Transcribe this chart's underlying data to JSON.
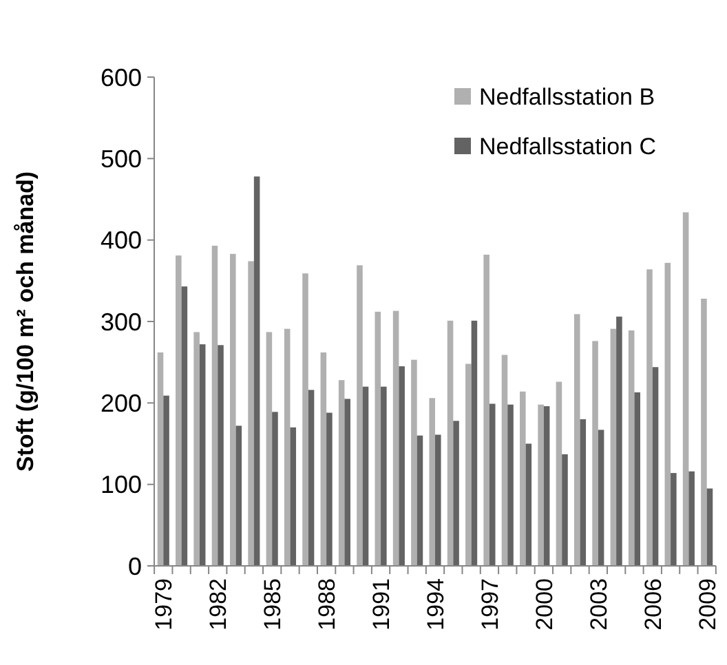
{
  "chart_data": {
    "type": "bar",
    "ylabel": "Stoft (g/100 m² och månad)",
    "categories": [
      "1979",
      null,
      null,
      "1982",
      null,
      null,
      "1985",
      null,
      null,
      "1988",
      null,
      null,
      "1991",
      null,
      null,
      "1994",
      null,
      null,
      "1997",
      null,
      null,
      "2000",
      null,
      null,
      "2003",
      null,
      null,
      "2006",
      null,
      null,
      "2009"
    ],
    "series": [
      {
        "name": "Nedfallsstation B",
        "color": "#b0b0b0",
        "values": [
          262,
          381,
          287,
          393,
          383,
          374,
          287,
          291,
          359,
          262,
          228,
          369,
          312,
          313,
          253,
          206,
          301,
          248,
          382,
          259,
          214,
          198,
          226,
          309,
          276,
          291,
          289,
          364,
          372,
          434,
          328
        ]
      },
      {
        "name": "Nedfallsstation C",
        "color": "#636363",
        "values": [
          209,
          343,
          272,
          271,
          172,
          478,
          189,
          170,
          216,
          188,
          205,
          220,
          220,
          245,
          160,
          161,
          178,
          301,
          199,
          198,
          150,
          196,
          137,
          180,
          167,
          306,
          213,
          244,
          114,
          116,
          95
        ]
      }
    ],
    "ylim": [
      0,
      600
    ],
    "yticks": [
      0,
      100,
      200,
      300,
      400,
      500,
      600
    ],
    "grid": false,
    "legend": "top right"
  }
}
